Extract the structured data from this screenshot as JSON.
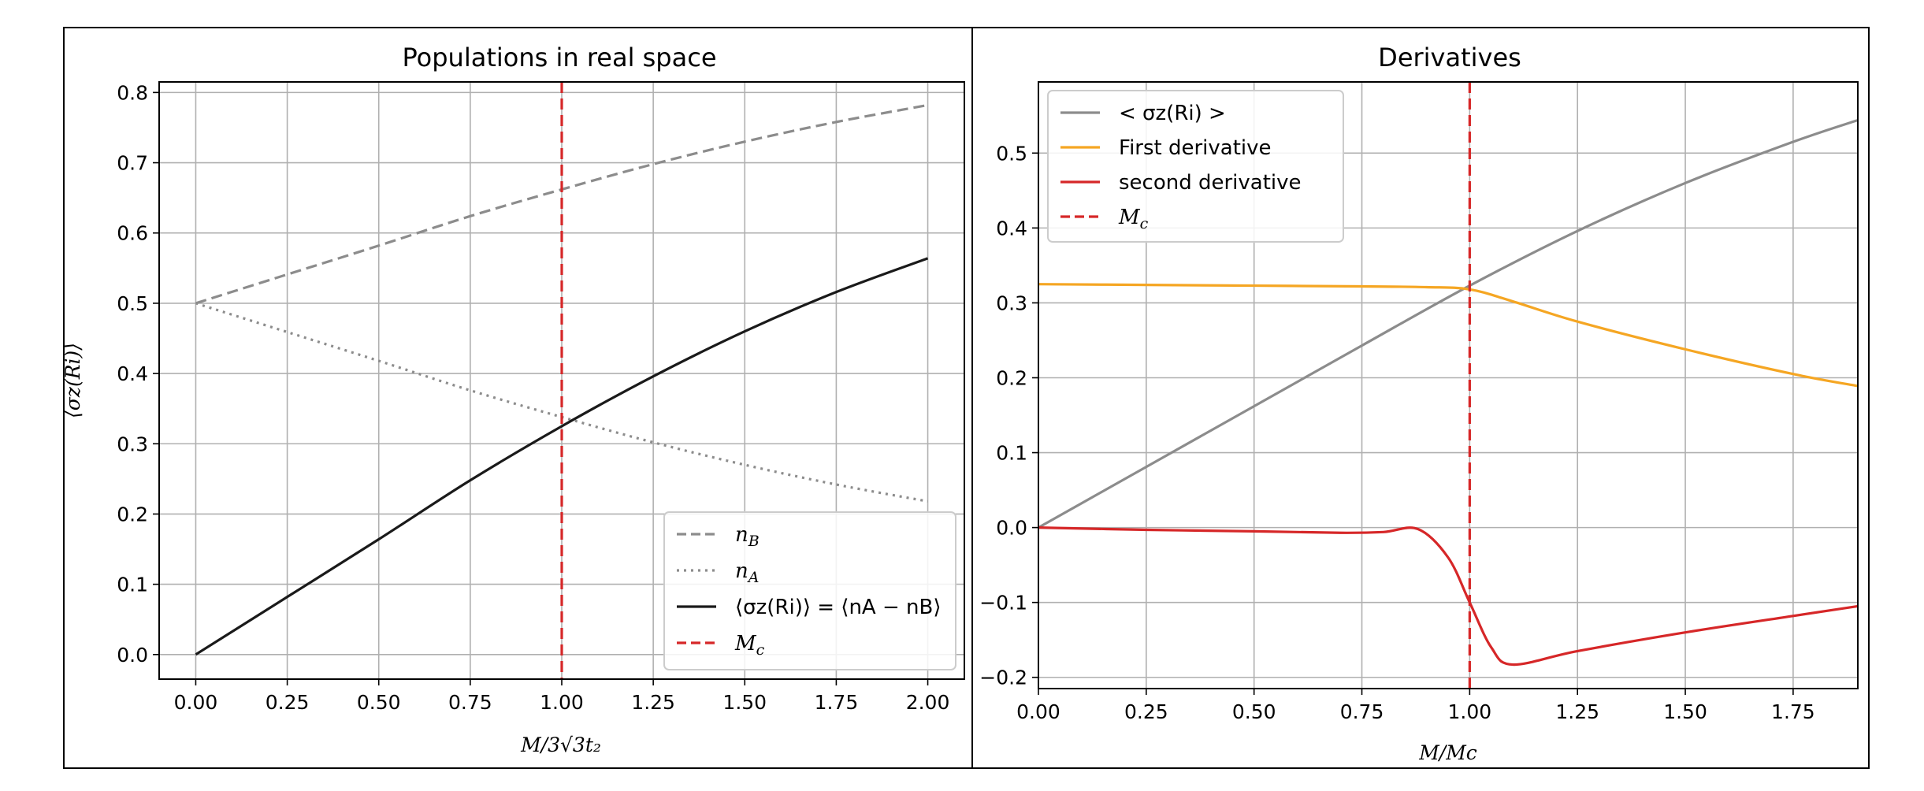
{
  "colors": {
    "black": "#1a1a1a",
    "gray": "#8c8c8c",
    "orange": "#f5a623",
    "red": "#d62728",
    "grid": "#b0b0b0"
  },
  "chart_data": [
    {
      "type": "line",
      "title": "Populations in real space",
      "xlabel": "M/3√3t₂",
      "ylabel": "⟨σz(Ri)⟩",
      "xlim": [
        -0.1,
        2.1
      ],
      "ylim": [
        -0.035,
        0.815
      ],
      "grid": true,
      "legend_position": "lower-right",
      "x_ticks": [
        0.0,
        0.25,
        0.5,
        0.75,
        1.0,
        1.25,
        1.5,
        1.75,
        2.0
      ],
      "x_tick_labels": [
        "0.00",
        "0.25",
        "0.50",
        "0.75",
        "1.00",
        "1.25",
        "1.50",
        "1.75",
        "2.00"
      ],
      "y_ticks": [
        0.0,
        0.1,
        0.2,
        0.3,
        0.4,
        0.5,
        0.6,
        0.7,
        0.8
      ],
      "y_tick_labels": [
        "0.0",
        "0.1",
        "0.2",
        "0.3",
        "0.4",
        "0.5",
        "0.6",
        "0.7",
        "0.8"
      ],
      "vline": {
        "x": 1.0,
        "name": "Mc",
        "color": "#d62728",
        "style": "dashed"
      },
      "series": [
        {
          "name": "nB",
          "color": "#8c8c8c",
          "style": "dashed",
          "x": [
            0,
            0.25,
            0.5,
            0.75,
            1.0,
            1.25,
            1.5,
            1.75,
            2.0
          ],
          "y": [
            0.5,
            0.541,
            0.582,
            0.624,
            0.662,
            0.698,
            0.73,
            0.758,
            0.782
          ]
        },
        {
          "name": "nA",
          "color": "#8c8c8c",
          "style": "dotted",
          "x": [
            0,
            0.25,
            0.5,
            0.75,
            1.0,
            1.25,
            1.5,
            1.75,
            2.0
          ],
          "y": [
            0.5,
            0.459,
            0.418,
            0.376,
            0.338,
            0.302,
            0.27,
            0.242,
            0.218
          ]
        },
        {
          "name": "⟨σz(Ri)⟩ = ⟨nA − nB⟩",
          "color": "#1a1a1a",
          "style": "solid",
          "x": [
            0,
            0.25,
            0.5,
            0.75,
            1.0,
            1.25,
            1.5,
            1.75,
            2.0
          ],
          "y": [
            0.0,
            0.082,
            0.164,
            0.248,
            0.325,
            0.396,
            0.46,
            0.516,
            0.564
          ]
        }
      ],
      "legend": [
        {
          "label": "nB",
          "style": "dashed",
          "color": "#8c8c8c"
        },
        {
          "label": "nA",
          "style": "dotted",
          "color": "#8c8c8c"
        },
        {
          "label": "⟨σz(Ri)⟩ = ⟨nA − nB⟩",
          "style": "solid",
          "color": "#1a1a1a"
        },
        {
          "label": "Mc",
          "style": "dashed",
          "color": "#d62728"
        }
      ]
    },
    {
      "type": "line",
      "title": "Derivatives",
      "xlabel": "M/Mc",
      "ylabel": "",
      "xlim": [
        0.0,
        1.9
      ],
      "ylim": [
        -0.215,
        0.595
      ],
      "grid": true,
      "legend_position": "upper-left",
      "x_ticks": [
        0.0,
        0.25,
        0.5,
        0.75,
        1.0,
        1.25,
        1.5,
        1.75
      ],
      "x_tick_labels": [
        "0.00",
        "0.25",
        "0.50",
        "0.75",
        "1.00",
        "1.25",
        "1.50",
        "1.75"
      ],
      "y_ticks": [
        -0.2,
        -0.1,
        0.0,
        0.1,
        0.2,
        0.3,
        0.4,
        0.5
      ],
      "y_tick_labels": [
        "−0.2",
        "−0.1",
        "0.0",
        "0.1",
        "0.2",
        "0.3",
        "0.4",
        "0.5"
      ],
      "vline": {
        "x": 1.0,
        "name": "Mc",
        "color": "#d62728",
        "style": "dashed"
      },
      "series": [
        {
          "name": "< σz(Ri) >",
          "color": "#8c8c8c",
          "style": "solid",
          "x": [
            0,
            0.25,
            0.5,
            0.75,
            1.0,
            1.25,
            1.5,
            1.75,
            1.9
          ],
          "y": [
            0.0,
            0.081,
            0.162,
            0.243,
            0.323,
            0.396,
            0.46,
            0.515,
            0.544
          ]
        },
        {
          "name": "First derivative",
          "color": "#f5a623",
          "style": "solid",
          "x": [
            0,
            0.25,
            0.5,
            0.75,
            0.9,
            1.0,
            1.1,
            1.25,
            1.5,
            1.75,
            1.9
          ],
          "y": [
            0.325,
            0.324,
            0.323,
            0.322,
            0.321,
            0.318,
            0.302,
            0.275,
            0.238,
            0.205,
            0.189
          ]
        },
        {
          "name": "second derivative",
          "color": "#d62728",
          "style": "solid",
          "x": [
            0,
            0.25,
            0.5,
            0.7,
            0.8,
            0.88,
            0.95,
            1.0,
            1.05,
            1.1,
            1.25,
            1.5,
            1.75,
            1.9
          ],
          "y": [
            0.0,
            -0.003,
            -0.005,
            -0.007,
            -0.006,
            -0.002,
            -0.04,
            -0.1,
            -0.16,
            -0.183,
            -0.165,
            -0.14,
            -0.118,
            -0.105
          ]
        }
      ],
      "legend": [
        {
          "label": "< σz(Ri) >",
          "style": "solid",
          "color": "#8c8c8c"
        },
        {
          "label": "First derivative",
          "style": "solid",
          "color": "#f5a623"
        },
        {
          "label": "second derivative",
          "style": "solid",
          "color": "#d62728"
        },
        {
          "label": "Mc",
          "style": "dashed",
          "color": "#d62728"
        }
      ]
    }
  ]
}
